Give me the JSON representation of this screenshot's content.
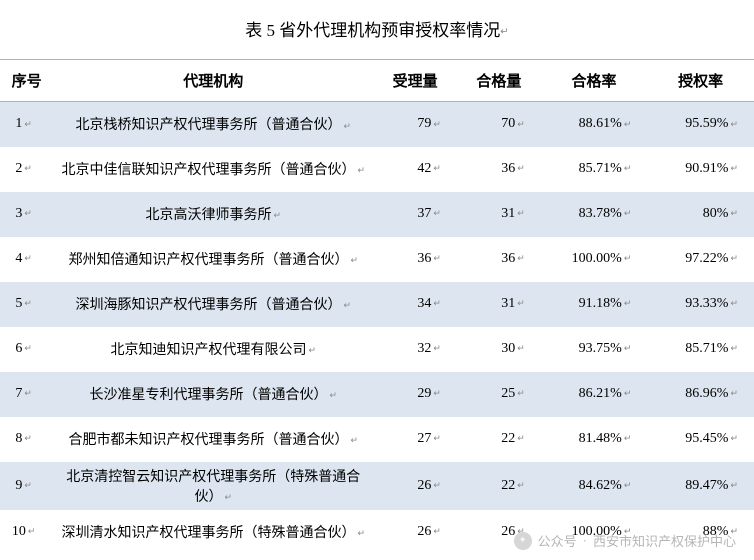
{
  "title": "表 5 省外代理机构预审授权率情况",
  "enter_glyph": "↵",
  "columns": {
    "index": "序号",
    "agency": "代理机构",
    "received": "受理量",
    "passed": "合格量",
    "pass_rate": "合格率",
    "auth_rate": "授权率"
  },
  "colors": {
    "row_odd_bg": "#dde6f0",
    "row_even_bg": "#ffffff",
    "border": "#9db5d4",
    "text": "#000000"
  },
  "rows": [
    {
      "index": "1",
      "agency": "北京栈桥知识产权代理事务所（普通合伙）",
      "received": "79",
      "passed": "70",
      "pass_rate": "88.61%",
      "auth_rate": "95.59%"
    },
    {
      "index": "2",
      "agency": "北京中佳信联知识产权代理事务所（普通合伙）",
      "received": "42",
      "passed": "36",
      "pass_rate": "85.71%",
      "auth_rate": "90.91%"
    },
    {
      "index": "3",
      "agency": "北京高沃律师事务所",
      "received": "37",
      "passed": "31",
      "pass_rate": "83.78%",
      "auth_rate": "80%"
    },
    {
      "index": "4",
      "agency": "郑州知倍通知识产权代理事务所（普通合伙）",
      "received": "36",
      "passed": "36",
      "pass_rate": "100.00%",
      "auth_rate": "97.22%"
    },
    {
      "index": "5",
      "agency": "深圳海豚知识产权代理事务所（普通合伙）",
      "received": "34",
      "passed": "31",
      "pass_rate": "91.18%",
      "auth_rate": "93.33%"
    },
    {
      "index": "6",
      "agency": "北京知迪知识产权代理有限公司",
      "received": "32",
      "passed": "30",
      "pass_rate": "93.75%",
      "auth_rate": "85.71%"
    },
    {
      "index": "7",
      "agency": "长沙准星专利代理事务所（普通合伙）",
      "received": "29",
      "passed": "25",
      "pass_rate": "86.21%",
      "auth_rate": "86.96%"
    },
    {
      "index": "8",
      "agency": "合肥市都未知识产权代理事务所（普通合伙）",
      "received": "27",
      "passed": "22",
      "pass_rate": "81.48%",
      "auth_rate": "95.45%"
    },
    {
      "index": "9",
      "agency": "北京清控智云知识产权代理事务所（特殊普通合伙）",
      "received": "26",
      "passed": "22",
      "pass_rate": "84.62%",
      "auth_rate": "89.47%"
    },
    {
      "index": "10",
      "agency": "深圳清水知识产权代理事务所（特殊普通合伙）",
      "received": "26",
      "passed": "26",
      "pass_rate": "100.00%",
      "auth_rate": "88%"
    }
  ],
  "watermark": {
    "label": "公众号",
    "name": "西安市知识产权保护中心"
  }
}
